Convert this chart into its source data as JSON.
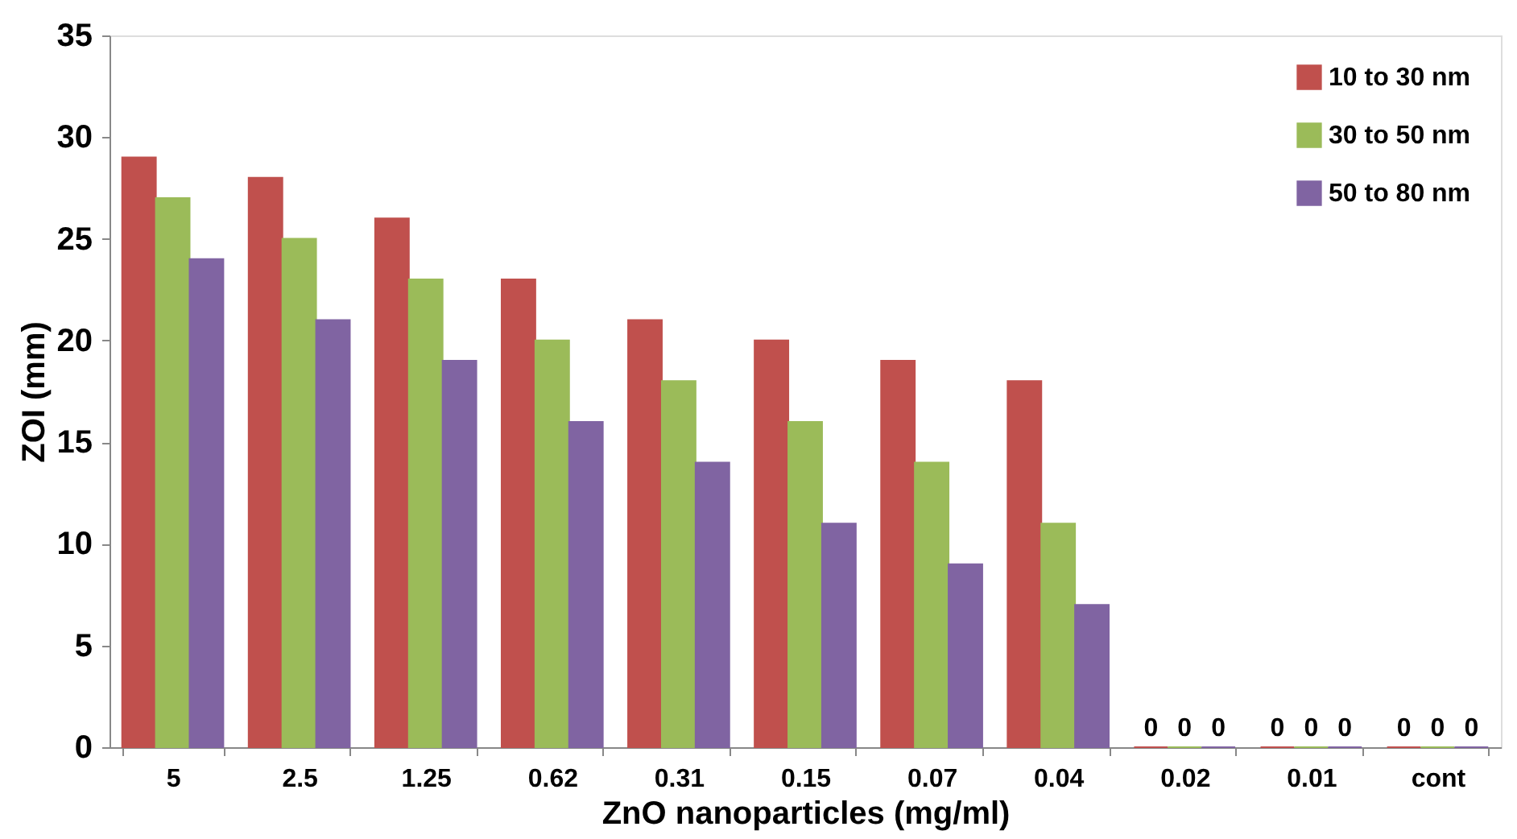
{
  "chart_data": {
    "type": "bar",
    "xlabel": "ZnO nanoparticles (mg/ml)",
    "ylabel": "ZOI (mm)",
    "categories": [
      "5",
      "2.5",
      "1.25",
      "0.62",
      "0.31",
      "0.15",
      "0.07",
      "0.04",
      "0.02",
      "0.01",
      "cont"
    ],
    "series": [
      {
        "name": "10 to 30 nm",
        "color": "#c0504d",
        "values": [
          29,
          28,
          26,
          23,
          21,
          20,
          19,
          18,
          0,
          0,
          0
        ],
        "value_labels": [
          null,
          null,
          null,
          null,
          null,
          null,
          null,
          null,
          "0",
          "0",
          "0"
        ]
      },
      {
        "name": "30 to 50 nm",
        "color": "#9bbb59",
        "values": [
          27,
          25,
          23,
          20,
          18,
          16,
          14,
          11,
          0,
          0,
          0
        ],
        "value_labels": [
          null,
          null,
          null,
          null,
          null,
          null,
          null,
          null,
          "0",
          "0",
          "0"
        ]
      },
      {
        "name": "50 to 80 nm",
        "color": "#8064a2",
        "values": [
          24,
          21,
          19,
          16,
          14,
          11,
          9,
          7,
          0,
          0,
          0
        ],
        "value_labels": [
          null,
          null,
          null,
          null,
          null,
          null,
          null,
          null,
          "0",
          "0",
          "0"
        ]
      }
    ],
    "ylim": [
      0,
      35
    ],
    "yticks": [
      0,
      5,
      10,
      15,
      20,
      25,
      30,
      35
    ],
    "grid": false,
    "legend": "top right"
  }
}
